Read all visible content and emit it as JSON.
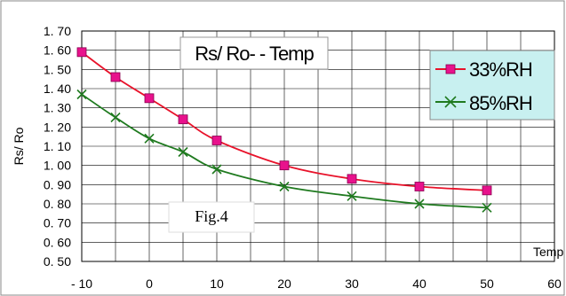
{
  "chart_data": {
    "type": "line",
    "title": "Rs/ Ro- - Temp",
    "xlabel": "Temp",
    "ylabel": "Rs/ Ro",
    "annotation": "Fig.4",
    "xlim": [
      -10,
      60
    ],
    "ylim": [
      0.5,
      1.7
    ],
    "x_ticks": [
      "- 10",
      "0",
      "10",
      "20",
      "30",
      "40",
      "50",
      "60"
    ],
    "y_ticks": [
      "1. 70",
      "1. 60",
      "1. 50",
      "1. 40",
      "1. 30",
      "1. 20",
      "1. 10",
      "1. 00",
      "0. 90",
      "0. 80",
      "0. 70",
      "0. 60",
      "0. 50"
    ],
    "grid": true,
    "legend_position": "top-right",
    "series": [
      {
        "name": "33%RH",
        "color": "#e8122a",
        "marker": "square",
        "marker_color": "#e8128c",
        "x": [
          -10,
          -5,
          0,
          5,
          10,
          20,
          30,
          40,
          50
        ],
        "y": [
          1.59,
          1.46,
          1.35,
          1.24,
          1.13,
          1.0,
          0.93,
          0.89,
          0.87
        ]
      },
      {
        "name": "85%RH",
        "color": "#1f7a1f",
        "marker": "x",
        "marker_color": "#1f7a1f",
        "x": [
          -10,
          -5,
          0,
          5,
          10,
          20,
          30,
          40,
          50
        ],
        "y": [
          1.37,
          1.25,
          1.14,
          1.07,
          0.98,
          0.89,
          0.84,
          0.8,
          0.78
        ]
      }
    ]
  }
}
